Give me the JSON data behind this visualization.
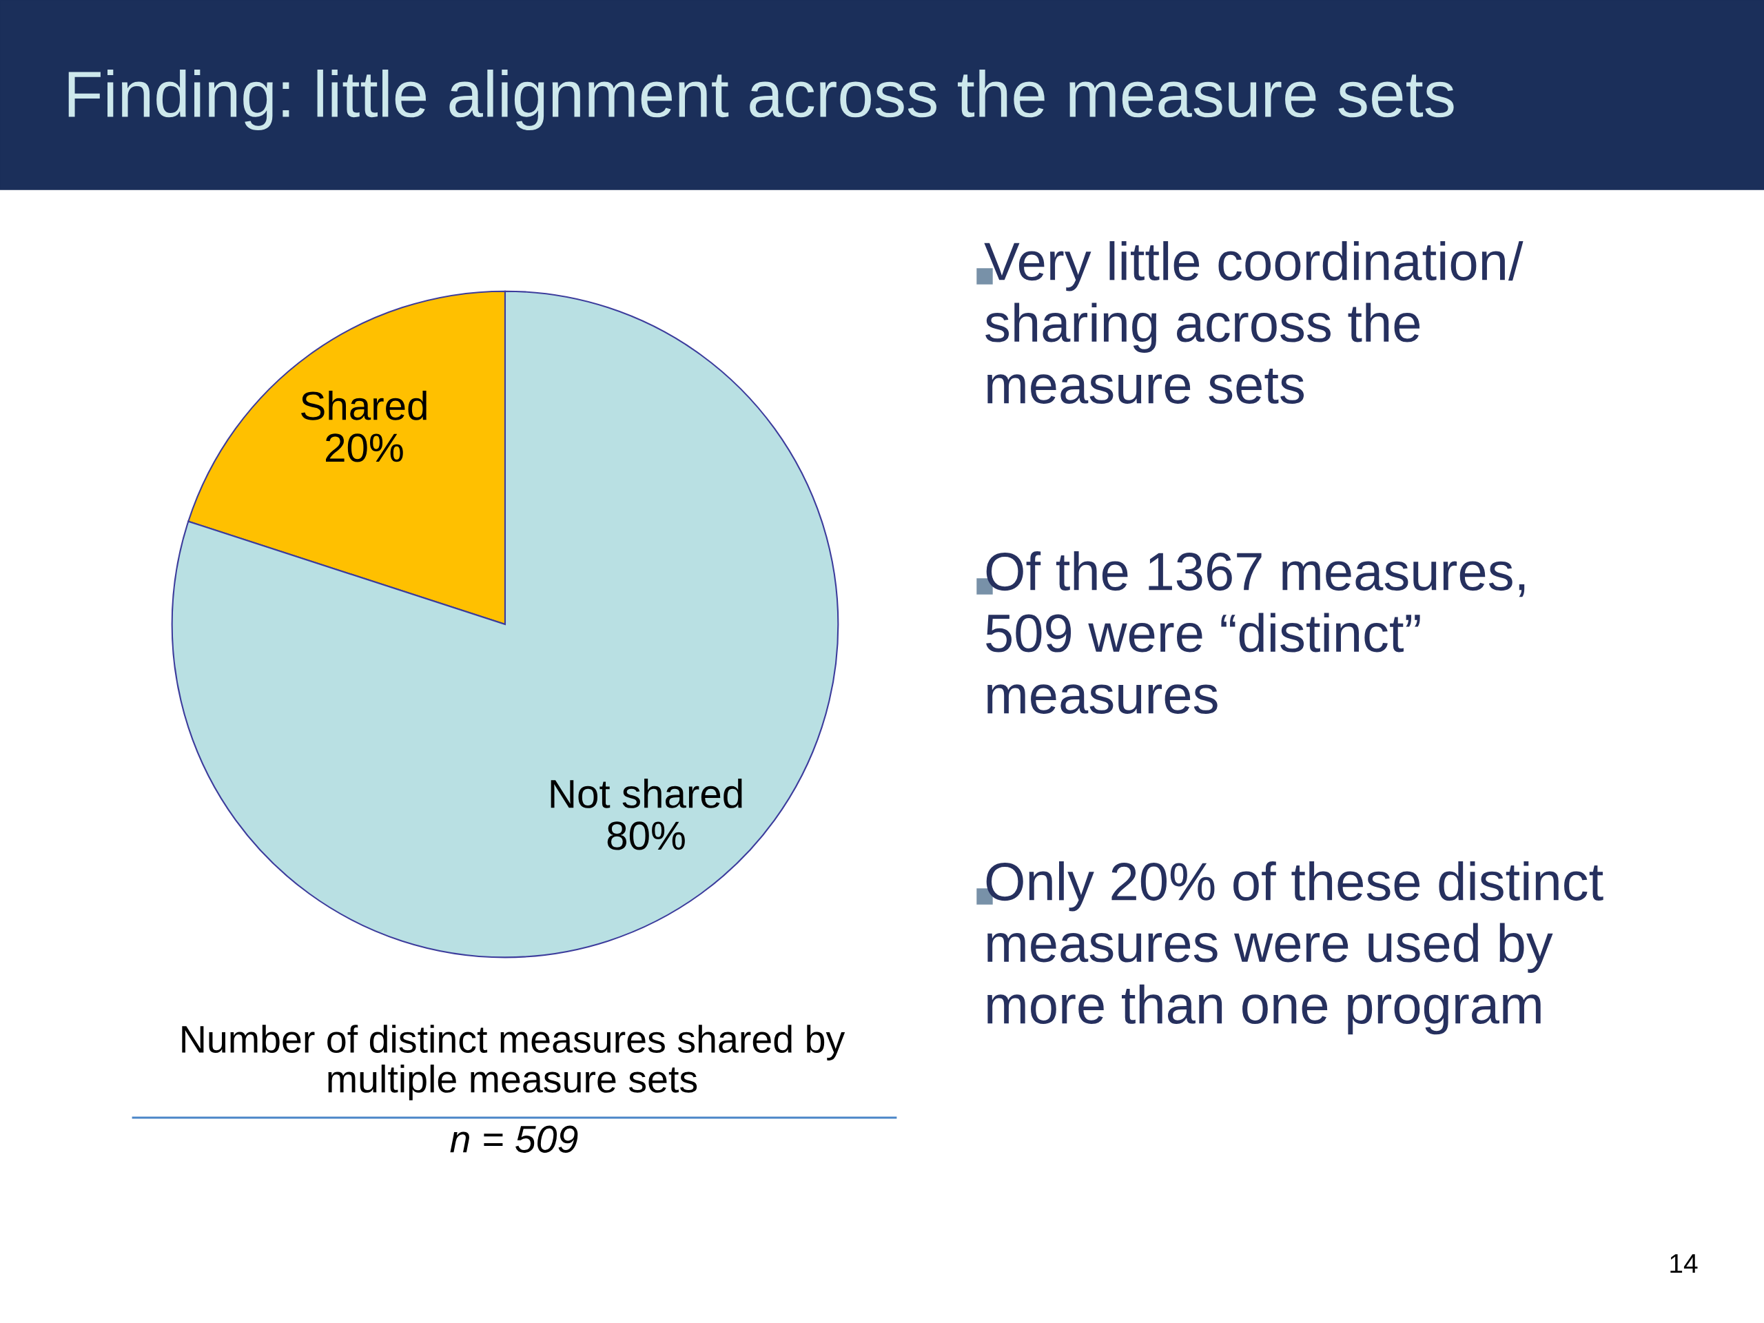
{
  "chart_data": {
    "type": "pie",
    "title": "Finding: little alignment across the measure sets",
    "categories": [
      "Shared",
      "Not shared"
    ],
    "values": [
      20,
      80
    ],
    "value_labels": [
      "20%",
      "80%"
    ],
    "colors": [
      "#ffc000",
      "#b9e0e3"
    ],
    "legend": false,
    "annotations": [
      "Number of distinct measures shared by multiple measure sets",
      "n = 509",
      "Very little coordination/ sharing across the measure sets",
      "Of the 1367 measures, 509 were “distinct” measures",
      "Only 20% of these distinct measures were used by more than one program",
      "14"
    ]
  }
}
